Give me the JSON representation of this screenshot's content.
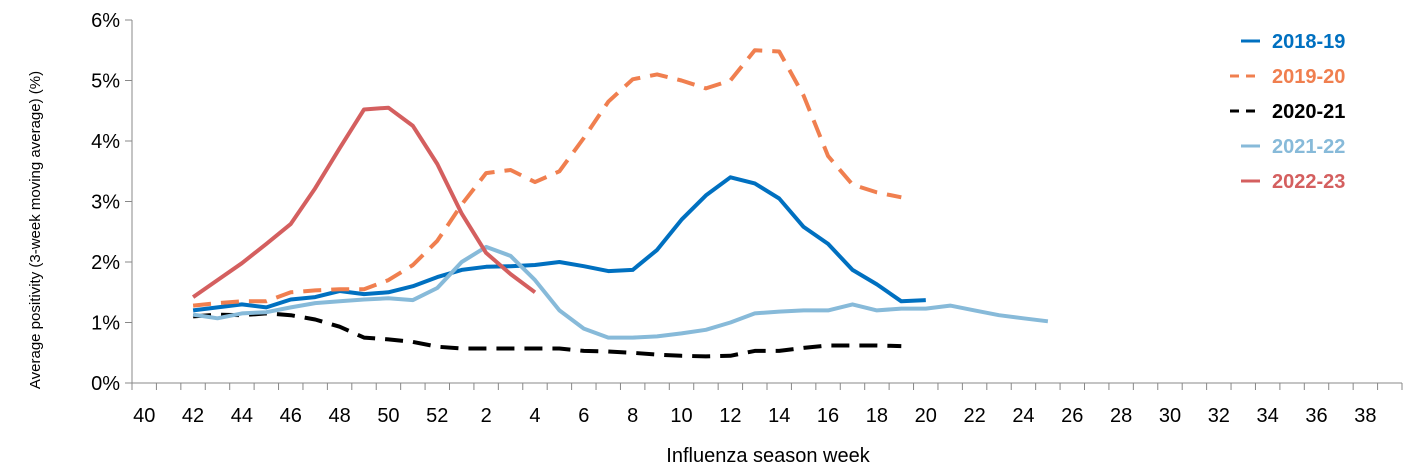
{
  "chart_data": {
    "type": "line",
    "title": "",
    "xlabel": "Influenza season week",
    "ylabel": "Average positivity (3-week moving average) (%)",
    "ylim": [
      0,
      6
    ],
    "yticks": [
      "0%",
      "1%",
      "2%",
      "3%",
      "4%",
      "5%",
      "6%"
    ],
    "x_positions": [
      "40",
      "41",
      "42",
      "43",
      "44",
      "45",
      "46",
      "47",
      "48",
      "49",
      "50",
      "51",
      "52",
      "1",
      "2",
      "3",
      "4",
      "5",
      "6",
      "7",
      "8",
      "9",
      "10",
      "11",
      "12",
      "13",
      "14",
      "15",
      "16",
      "17",
      "18",
      "19",
      "20",
      "21",
      "22",
      "23",
      "24",
      "25",
      "26",
      "27",
      "28",
      "29",
      "30",
      "31",
      "32",
      "33",
      "34",
      "35",
      "36",
      "37",
      "38",
      "39"
    ],
    "x_tick_labels": [
      "40",
      "42",
      "44",
      "46",
      "48",
      "50",
      "52",
      "2",
      "4",
      "6",
      "8",
      "10",
      "12",
      "14",
      "16",
      "18",
      "20",
      "22",
      "24",
      "26",
      "28",
      "30",
      "32",
      "34",
      "36",
      "38"
    ],
    "legend_position": "top-right",
    "grid": false,
    "series": [
      {
        "name": "2018-19",
        "color": "#0070C0",
        "dash": "solid",
        "start_week": "42",
        "values": [
          1.2,
          1.25,
          1.3,
          1.25,
          1.38,
          1.42,
          1.52,
          1.47,
          1.5,
          1.6,
          1.75,
          1.87,
          1.92,
          1.93,
          1.95,
          2.0,
          1.93,
          1.85,
          1.87,
          2.2,
          2.7,
          3.1,
          3.4,
          3.3,
          3.05,
          2.58,
          2.3,
          1.87,
          1.63,
          1.35,
          1.37
        ]
      },
      {
        "name": "2019-20",
        "color": "#F07F4F",
        "dash": "dash",
        "start_week": "42",
        "values": [
          1.28,
          1.32,
          1.35,
          1.35,
          1.5,
          1.53,
          1.55,
          1.55,
          1.7,
          1.95,
          2.35,
          2.95,
          3.47,
          3.52,
          3.32,
          3.5,
          4.05,
          4.65,
          5.02,
          5.1,
          5.0,
          4.87,
          5.0,
          5.5,
          5.48,
          4.75,
          3.75,
          3.28,
          3.15,
          3.07
        ]
      },
      {
        "name": "2020-21",
        "color": "#000000",
        "dash": "dash",
        "start_week": "42",
        "values": [
          1.1,
          1.13,
          1.12,
          1.15,
          1.12,
          1.05,
          0.93,
          0.75,
          0.72,
          0.68,
          0.6,
          0.57,
          0.57,
          0.57,
          0.57,
          0.57,
          0.53,
          0.52,
          0.5,
          0.47,
          0.45,
          0.44,
          0.45,
          0.53,
          0.53,
          0.58,
          0.62,
          0.62,
          0.62,
          0.61
        ]
      },
      {
        "name": "2021-22",
        "color": "#87BAD9",
        "dash": "solid",
        "start_week": "42",
        "values": [
          1.13,
          1.07,
          1.15,
          1.17,
          1.25,
          1.32,
          1.35,
          1.38,
          1.4,
          1.37,
          1.57,
          2.0,
          2.25,
          2.1,
          1.7,
          1.2,
          0.9,
          0.75,
          0.75,
          0.77,
          0.82,
          0.88,
          1.0,
          1.15,
          1.18,
          1.2,
          1.2,
          1.3,
          1.2,
          1.23,
          1.23,
          1.28,
          1.2,
          1.12,
          1.07,
          1.02
        ]
      },
      {
        "name": "2022-23",
        "color": "#D45F5F",
        "dash": "solid",
        "start_week": "42",
        "values": [
          1.42,
          1.7,
          1.98,
          2.3,
          2.63,
          3.22,
          3.88,
          4.52,
          4.55,
          4.25,
          3.62,
          2.8,
          2.15,
          1.8,
          1.5
        ]
      }
    ]
  }
}
